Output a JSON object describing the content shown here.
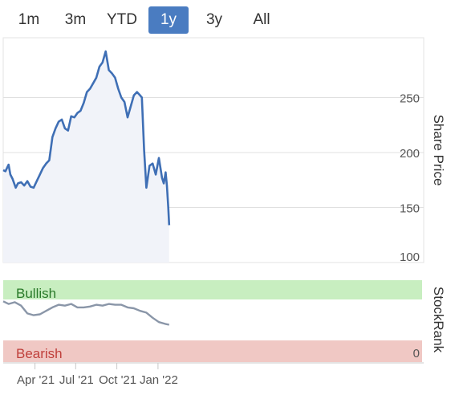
{
  "range_selector": {
    "buttons": [
      "1m",
      "3m",
      "YTD",
      "1y",
      "3y",
      "All"
    ],
    "active": "1y",
    "colors": {
      "active_bg": "#4a7cc1",
      "active_text": "#ffffff"
    }
  },
  "chart_data": [
    {
      "type": "area",
      "ylabel": "Share Price",
      "ylim": [
        100,
        300
      ],
      "yticks": [
        100,
        150,
        200,
        250
      ],
      "grid": true,
      "colors": {
        "line": "#3f6fb5",
        "fill": "#f1f3f9"
      },
      "series": [
        {
          "x": [
            "2021-01-20",
            "2021-01-25",
            "2021-02-01",
            "2021-02-05",
            "2021-02-10",
            "2021-02-17",
            "2021-02-22",
            "2021-03-01",
            "2021-03-08",
            "2021-03-15",
            "2021-03-22",
            "2021-03-29",
            "2021-04-05",
            "2021-04-12",
            "2021-04-19",
            "2021-04-26",
            "2021-05-03",
            "2021-05-10",
            "2021-05-17",
            "2021-05-24",
            "2021-05-31",
            "2021-06-07",
            "2021-06-14",
            "2021-06-21",
            "2021-06-28",
            "2021-07-05",
            "2021-07-12",
            "2021-07-19",
            "2021-07-26",
            "2021-08-02",
            "2021-08-09",
            "2021-08-16",
            "2021-08-23",
            "2021-08-30",
            "2021-09-06",
            "2021-09-13",
            "2021-09-20",
            "2021-09-27",
            "2021-10-04",
            "2021-10-11",
            "2021-10-18",
            "2021-10-25",
            "2021-11-01",
            "2021-11-08",
            "2021-11-15",
            "2021-11-22",
            "2021-11-26",
            "2021-12-01",
            "2021-12-06",
            "2021-12-13",
            "2021-12-20",
            "2021-12-27",
            "2022-01-03",
            "2022-01-10",
            "2022-01-14",
            "2022-01-18",
            "2022-01-21",
            "2022-01-24",
            "2022-01-26"
          ],
          "y": [
            184,
            183,
            189,
            180,
            176,
            168,
            172,
            173,
            170,
            174,
            169,
            168,
            174,
            180,
            186,
            190,
            193,
            214,
            222,
            228,
            230,
            222,
            220,
            233,
            232,
            236,
            238,
            245,
            255,
            258,
            263,
            268,
            278,
            282,
            292,
            275,
            272,
            268,
            258,
            250,
            246,
            232,
            242,
            252,
            255,
            252,
            250,
            202,
            168,
            188,
            190,
            180,
            195,
            177,
            172,
            182,
            170,
            150,
            134
          ]
        }
      ]
    },
    {
      "type": "line",
      "ylabel": "StockRank",
      "ylim": [
        0,
        100
      ],
      "yticks": [
        0
      ],
      "bands": [
        {
          "label": "Bullish",
          "color": "#c8eec0",
          "text_color": "#2a7a2a"
        },
        {
          "label": "Bearish",
          "color": "#f0c8c4",
          "text_color": "#c0403c"
        }
      ],
      "colors": {
        "line": "#8a96a8"
      },
      "series": [
        {
          "x": [
            "2021-01-20",
            "2021-02-01",
            "2021-02-15",
            "2021-03-01",
            "2021-03-15",
            "2021-03-29",
            "2021-04-12",
            "2021-04-26",
            "2021-05-10",
            "2021-05-24",
            "2021-06-07",
            "2021-06-21",
            "2021-07-05",
            "2021-07-19",
            "2021-08-02",
            "2021-08-16",
            "2021-08-30",
            "2021-09-13",
            "2021-09-27",
            "2021-10-11",
            "2021-10-25",
            "2021-11-08",
            "2021-11-22",
            "2021-12-06",
            "2021-12-20",
            "2022-01-03",
            "2022-01-17",
            "2022-01-26"
          ],
          "y": [
            71,
            68,
            70,
            66,
            57,
            55,
            56,
            60,
            64,
            67,
            66,
            68,
            64,
            64,
            65,
            67,
            66,
            68,
            67,
            67,
            64,
            63,
            60,
            58,
            52,
            47,
            45,
            44
          ]
        }
      ]
    }
  ],
  "x_axis": {
    "ticks": [
      {
        "date": "2021-04-01",
        "label": "Apr '21"
      },
      {
        "date": "2021-07-01",
        "label": "Jul '21"
      },
      {
        "date": "2021-10-01",
        "label": "Oct '21"
      },
      {
        "date": "2022-01-01",
        "label": "Jan '22"
      }
    ]
  }
}
